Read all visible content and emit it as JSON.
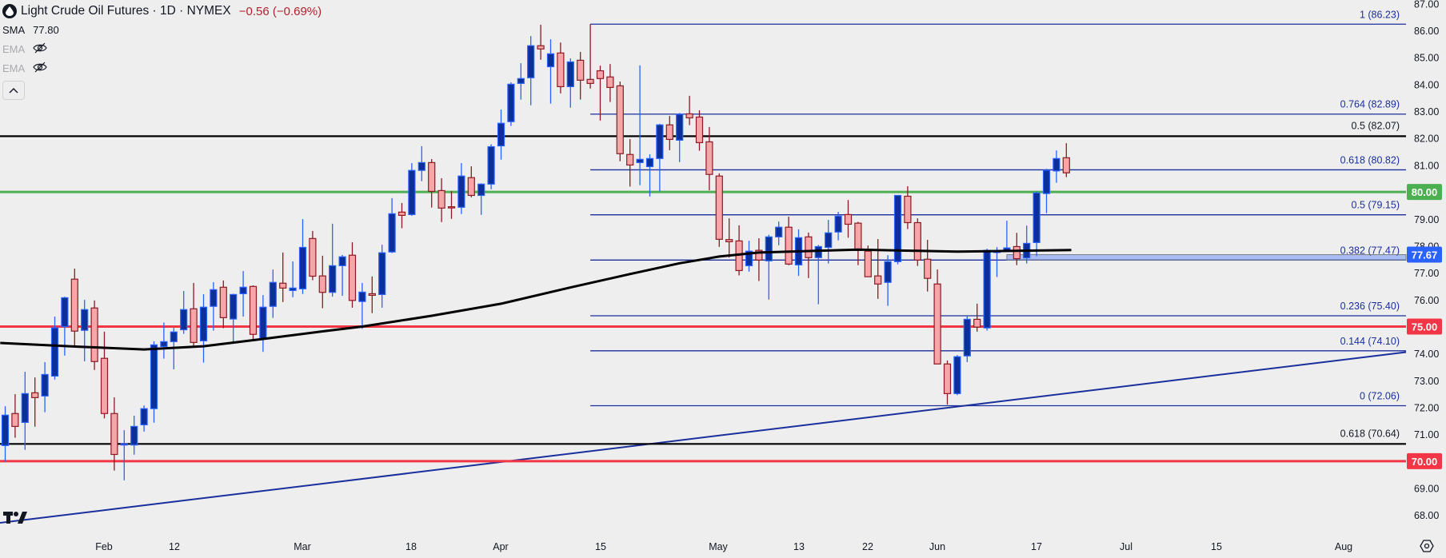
{
  "header": {
    "symbol_icon": "oil-drop-icon",
    "title": "Light Crude Oil Futures · 1D · NYMEX",
    "change": "−0.56 (−0.69%)",
    "indicators": [
      {
        "name": "SMA",
        "value": "77.80",
        "visible": true
      },
      {
        "name": "EMA",
        "icon": "eye-off-icon",
        "visible": false
      },
      {
        "name": "EMA",
        "icon": "eye-off-icon",
        "visible": false
      }
    ],
    "collapse_icon": "chevron-up-icon"
  },
  "colors": {
    "background": "#eeeeee",
    "up_fill": "#0c2f99",
    "up_border": "#2962ff",
    "down_fill": "#f7a5a9",
    "down_border": "#8b1a22",
    "fib": "#1a2f9c",
    "sma": "#000000",
    "green_level": "#4caf50",
    "red_level": "#f23645",
    "zone": "#2962ff"
  },
  "chart_data": {
    "type": "candlestick",
    "title": "Light Crude Oil Futures · 1D · NYMEX",
    "ylim": [
      67.5,
      87.1
    ],
    "y_ticks": [
      "87.00",
      "86.00",
      "85.00",
      "84.00",
      "83.00",
      "82.00",
      "81.00",
      "79.00",
      "78.00",
      "77.00",
      "76.00",
      "74.00",
      "73.00",
      "72.00",
      "71.00",
      "69.00",
      "68.00"
    ],
    "x_ticks": [
      "Feb",
      "12",
      "Mar",
      "18",
      "Apr",
      "15",
      "May",
      "13",
      "22",
      "Jun",
      "17",
      "Jul",
      "15",
      "Aug"
    ],
    "ohlc": [
      [
        70.58,
        72.04,
        69.99,
        71.71
      ],
      [
        71.77,
        72.49,
        70.87,
        71.29
      ],
      [
        71.44,
        73.32,
        70.42,
        72.51
      ],
      [
        72.54,
        73.11,
        71.28,
        72.36
      ],
      [
        72.42,
        73.68,
        71.82,
        73.22
      ],
      [
        73.16,
        75.37,
        73.03,
        74.95
      ],
      [
        75.0,
        76.11,
        73.92,
        76.07
      ],
      [
        76.76,
        77.15,
        74.28,
        74.83
      ],
      [
        74.86,
        75.99,
        73.71,
        75.63
      ],
      [
        75.69,
        75.97,
        73.39,
        73.7
      ],
      [
        73.82,
        74.81,
        71.59,
        71.77
      ],
      [
        71.77,
        72.37,
        69.65,
        70.25
      ],
      [
        70.6,
        71.15,
        69.29,
        70.65
      ],
      [
        70.6,
        71.69,
        70.24,
        71.29
      ],
      [
        71.35,
        72.07,
        71.1,
        71.95
      ],
      [
        71.95,
        74.45,
        71.43,
        74.32
      ],
      [
        74.26,
        75.15,
        73.81,
        74.44
      ],
      [
        74.44,
        74.95,
        73.41,
        74.8
      ],
      [
        74.88,
        76.32,
        74.73,
        75.63
      ],
      [
        75.66,
        76.62,
        74.24,
        74.41
      ],
      [
        74.47,
        76.2,
        73.66,
        75.72
      ],
      [
        75.75,
        76.65,
        74.85,
        76.37
      ],
      [
        76.46,
        76.71,
        74.94,
        75.33
      ],
      [
        75.28,
        76.22,
        74.44,
        76.19
      ],
      [
        76.22,
        77.06,
        75.37,
        76.46
      ],
      [
        76.49,
        76.53,
        74.48,
        74.71
      ],
      [
        74.53,
        76.17,
        74.06,
        75.72
      ],
      [
        75.75,
        77.12,
        75.32,
        76.64
      ],
      [
        76.61,
        77.75,
        75.91,
        76.43
      ],
      [
        76.34,
        77.42,
        76.09,
        76.43
      ],
      [
        76.4,
        78.99,
        76.21,
        77.94
      ],
      [
        78.27,
        78.55,
        76.72,
        76.87
      ],
      [
        76.88,
        77.63,
        75.68,
        76.27
      ],
      [
        76.27,
        78.82,
        76.11,
        77.26
      ],
      [
        77.26,
        77.66,
        76.14,
        77.59
      ],
      [
        77.65,
        78.13,
        75.7,
        75.97
      ],
      [
        75.93,
        76.62,
        74.91,
        76.28
      ],
      [
        76.22,
        76.86,
        75.5,
        76.16
      ],
      [
        76.19,
        78.04,
        75.7,
        77.74
      ],
      [
        77.77,
        79.77,
        77.73,
        79.19
      ],
      [
        79.25,
        79.59,
        78.65,
        79.13
      ],
      [
        79.16,
        81.07,
        79.11,
        80.8
      ],
      [
        80.8,
        81.7,
        80.4,
        81.09
      ],
      [
        81.09,
        81.22,
        79.42,
        80.02
      ],
      [
        80.05,
        80.51,
        78.88,
        79.4
      ],
      [
        79.45,
        80.03,
        79.0,
        79.43
      ],
      [
        79.43,
        81.07,
        79.18,
        80.59
      ],
      [
        80.53,
        80.95,
        79.8,
        79.87
      ],
      [
        79.87,
        80.32,
        79.15,
        80.29
      ],
      [
        80.29,
        81.77,
        80.1,
        81.68
      ],
      [
        81.71,
        83.06,
        81.2,
        82.55
      ],
      [
        82.61,
        84.07,
        82.45,
        84.0
      ],
      [
        84.03,
        84.78,
        83.43,
        84.21
      ],
      [
        84.24,
        85.79,
        83.22,
        85.43
      ],
      [
        85.43,
        86.21,
        84.91,
        85.31
      ],
      [
        84.65,
        85.67,
        83.28,
        85.13
      ],
      [
        85.16,
        85.55,
        83.66,
        83.91
      ],
      [
        83.91,
        84.96,
        83.13,
        84.83
      ],
      [
        84.89,
        85.2,
        83.43,
        84.15
      ],
      [
        84.18,
        86.23,
        83.84,
        84.03
      ],
      [
        84.5,
        84.69,
        82.65,
        84.21
      ],
      [
        84.27,
        84.75,
        83.34,
        83.88
      ],
      [
        83.94,
        84.1,
        81.14,
        81.42
      ],
      [
        81.39,
        81.96,
        80.2,
        81.0
      ],
      [
        81.09,
        84.7,
        80.25,
        81.21
      ],
      [
        80.94,
        81.4,
        79.83,
        81.24
      ],
      [
        81.24,
        82.53,
        80.02,
        82.49
      ],
      [
        82.49,
        82.82,
        81.55,
        81.95
      ],
      [
        81.92,
        82.93,
        81.11,
        82.88
      ],
      [
        82.9,
        83.57,
        82.48,
        82.75
      ],
      [
        82.78,
        83.03,
        81.53,
        81.83
      ],
      [
        81.86,
        82.41,
        80.06,
        80.65
      ],
      [
        80.59,
        80.69,
        77.96,
        78.24
      ],
      [
        78.23,
        79.02,
        77.56,
        78.15
      ],
      [
        78.18,
        78.76,
        76.9,
        77.08
      ],
      [
        77.26,
        78.19,
        77.04,
        77.8
      ],
      [
        77.83,
        78.28,
        76.69,
        77.47
      ],
      [
        77.44,
        78.41,
        76.0,
        78.33
      ],
      [
        78.33,
        78.9,
        78.02,
        78.69
      ],
      [
        78.69,
        79.08,
        77.28,
        77.32
      ],
      [
        77.29,
        78.61,
        76.88,
        78.3
      ],
      [
        78.33,
        78.49,
        76.8,
        77.56
      ],
      [
        77.56,
        78.03,
        75.83,
        77.97
      ],
      [
        77.94,
        78.96,
        77.34,
        78.48
      ],
      [
        78.51,
        79.26,
        78.2,
        79.1
      ],
      [
        79.16,
        79.7,
        78.3,
        78.8
      ],
      [
        78.84,
        78.89,
        77.28,
        77.83
      ],
      [
        77.8,
        78.01,
        76.85,
        76.85
      ],
      [
        76.88,
        78.25,
        76.03,
        76.58
      ],
      [
        76.64,
        77.65,
        75.77,
        77.41
      ],
      [
        77.41,
        79.87,
        77.31,
        79.87
      ],
      [
        79.84,
        80.21,
        78.62,
        78.86
      ],
      [
        78.86,
        79.02,
        77.25,
        77.47
      ],
      [
        77.5,
        78.22,
        76.3,
        76.79
      ],
      [
        76.58,
        77.12,
        73.61,
        73.61
      ],
      [
        73.61,
        73.74,
        72.1,
        72.51
      ],
      [
        72.51,
        73.94,
        72.45,
        73.88
      ],
      [
        73.91,
        75.42,
        73.68,
        75.27
      ],
      [
        75.27,
        75.85,
        74.81,
        74.98
      ],
      [
        74.95,
        77.89,
        74.85,
        77.83
      ],
      [
        77.75,
        77.95,
        76.84,
        77.8
      ],
      [
        77.83,
        78.93,
        77.8,
        77.92
      ],
      [
        77.97,
        78.48,
        77.28,
        77.52
      ],
      [
        77.55,
        78.75,
        77.34,
        78.09
      ],
      [
        78.12,
        80.02,
        77.61,
        79.96
      ],
      [
        79.94,
        80.86,
        79.21,
        80.8
      ],
      [
        80.78,
        81.54,
        80.34,
        81.24
      ],
      [
        81.27,
        81.81,
        80.55,
        80.71
      ]
    ],
    "sma": [
      [
        -0.5,
        74.39
      ],
      [
        7.5,
        74.25
      ],
      [
        14,
        74.15
      ],
      [
        20,
        74.27
      ],
      [
        26,
        74.54
      ],
      [
        32,
        74.82
      ],
      [
        36,
        75.0
      ],
      [
        43,
        75.4
      ],
      [
        50,
        75.85
      ],
      [
        57,
        76.45
      ],
      [
        63,
        76.95
      ],
      [
        68,
        77.35
      ],
      [
        72,
        77.6
      ],
      [
        76,
        77.75
      ],
      [
        86,
        77.86
      ],
      [
        96,
        77.78
      ],
      [
        107.5,
        77.84
      ]
    ],
    "horizontal_levels": [
      {
        "price": 82.07,
        "color": "#000000",
        "label": "0.5 (82.07)"
      },
      {
        "price": 80.0,
        "color": "#4caf50",
        "badge": "80.00"
      },
      {
        "price": 75.0,
        "color": "#f23645",
        "badge": "75.00"
      },
      {
        "price": 70.64,
        "color": "#000000",
        "label": "0.618 (70.64)"
      },
      {
        "price": 70.0,
        "color": "#f23645",
        "badge": "70.00"
      }
    ],
    "fib_levels": [
      {
        "price": 86.23,
        "label": "1 (86.23)"
      },
      {
        "price": 82.89,
        "label": "0.764 (82.89)"
      },
      {
        "price": 80.82,
        "label": "0.618 (80.82)"
      },
      {
        "price": 79.15,
        "label": "0.5 (79.15)"
      },
      {
        "price": 77.47,
        "label": "0.382 (77.47)"
      },
      {
        "price": 75.4,
        "label": "0.236 (75.40)"
      },
      {
        "price": 74.1,
        "label": "0.144 (74.10)"
      },
      {
        "price": 72.06,
        "label": "0 (72.06)"
      }
    ],
    "zone": {
      "low": 77.47,
      "high": 77.67,
      "badge": "77.67"
    },
    "trendline": {
      "start_price": 67.71,
      "end_price": 74.05
    }
  },
  "footer": {
    "logo": "tradingview-logo",
    "settings_icon": "gear-icon"
  }
}
